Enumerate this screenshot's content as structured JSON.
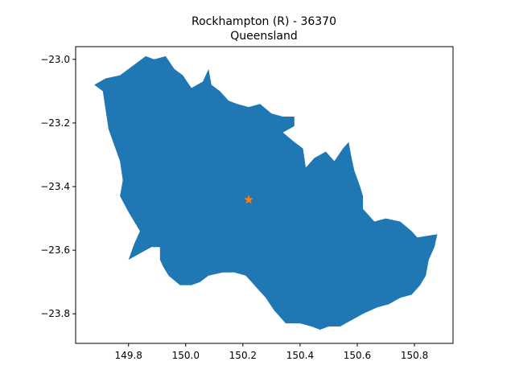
{
  "title": {
    "line1": "Rockhampton (R) - 36370",
    "line2": "Queensland"
  },
  "colors": {
    "region_fill": "#1f77b4",
    "marker": "#ff7f0e",
    "axes": "#000000",
    "background": "#ffffff"
  },
  "chart_data": {
    "type": "map",
    "region": "Rockhampton (R)",
    "state": "Queensland",
    "code": "36370",
    "xlim": [
      149.615,
      150.935
    ],
    "ylim": [
      -23.893,
      -22.96
    ],
    "x_ticks": [
      149.8,
      150.0,
      150.2,
      150.4,
      150.6,
      150.8
    ],
    "x_tick_labels": [
      "149.8",
      "150.0",
      "150.2",
      "150.4",
      "150.6",
      "150.8"
    ],
    "y_ticks": [
      -23.0,
      -23.2,
      -23.4,
      -23.6,
      -23.8
    ],
    "y_tick_labels": [
      "−23.0",
      "−23.2",
      "−23.4",
      "−23.6",
      "−23.8"
    ],
    "marker": {
      "symbol": "star",
      "lon": 150.22,
      "lat": -23.44
    },
    "boundary": [
      [
        149.68,
        -23.08
      ],
      [
        149.72,
        -23.06
      ],
      [
        149.77,
        -23.05
      ],
      [
        149.8,
        -23.03
      ],
      [
        149.83,
        -23.01
      ],
      [
        149.86,
        -22.99
      ],
      [
        149.89,
        -23.0
      ],
      [
        149.93,
        -22.99
      ],
      [
        149.96,
        -23.03
      ],
      [
        149.99,
        -23.05
      ],
      [
        150.02,
        -23.09
      ],
      [
        150.06,
        -23.07
      ],
      [
        150.08,
        -23.03
      ],
      [
        150.09,
        -23.08
      ],
      [
        150.12,
        -23.1
      ],
      [
        150.15,
        -23.13
      ],
      [
        150.18,
        -23.14
      ],
      [
        150.22,
        -23.15
      ],
      [
        150.26,
        -23.14
      ],
      [
        150.3,
        -23.17
      ],
      [
        150.34,
        -23.18
      ],
      [
        150.38,
        -23.18
      ],
      [
        150.38,
        -23.21
      ],
      [
        150.34,
        -23.23
      ],
      [
        150.38,
        -23.26
      ],
      [
        150.41,
        -23.28
      ],
      [
        150.42,
        -23.34
      ],
      [
        150.45,
        -23.31
      ],
      [
        150.49,
        -23.29
      ],
      [
        150.52,
        -23.32
      ],
      [
        150.55,
        -23.28
      ],
      [
        150.57,
        -23.26
      ],
      [
        150.58,
        -23.31
      ],
      [
        150.59,
        -23.35
      ],
      [
        150.61,
        -23.4
      ],
      [
        150.62,
        -23.43
      ],
      [
        150.62,
        -23.47
      ],
      [
        150.64,
        -23.49
      ],
      [
        150.66,
        -23.51
      ],
      [
        150.7,
        -23.5
      ],
      [
        150.75,
        -23.51
      ],
      [
        150.79,
        -23.54
      ],
      [
        150.81,
        -23.56
      ],
      [
        150.88,
        -23.55
      ],
      [
        150.87,
        -23.59
      ],
      [
        150.85,
        -23.63
      ],
      [
        150.84,
        -23.68
      ],
      [
        150.82,
        -23.71
      ],
      [
        150.79,
        -23.74
      ],
      [
        150.75,
        -23.75
      ],
      [
        150.71,
        -23.77
      ],
      [
        150.67,
        -23.78
      ],
      [
        150.62,
        -23.8
      ],
      [
        150.58,
        -23.82
      ],
      [
        150.54,
        -23.84
      ],
      [
        150.5,
        -23.84
      ],
      [
        150.47,
        -23.85
      ],
      [
        150.44,
        -23.84
      ],
      [
        150.4,
        -23.83
      ],
      [
        150.35,
        -23.83
      ],
      [
        150.31,
        -23.79
      ],
      [
        150.28,
        -23.75
      ],
      [
        150.24,
        -23.71
      ],
      [
        150.21,
        -23.68
      ],
      [
        150.17,
        -23.67
      ],
      [
        150.13,
        -23.67
      ],
      [
        150.08,
        -23.68
      ],
      [
        150.05,
        -23.7
      ],
      [
        150.02,
        -23.71
      ],
      [
        149.98,
        -23.71
      ],
      [
        149.94,
        -23.68
      ],
      [
        149.92,
        -23.65
      ],
      [
        149.91,
        -23.63
      ],
      [
        149.91,
        -23.59
      ],
      [
        149.88,
        -23.59
      ],
      [
        149.84,
        -23.61
      ],
      [
        149.8,
        -23.63
      ],
      [
        149.82,
        -23.58
      ],
      [
        149.84,
        -23.54
      ],
      [
        149.8,
        -23.48
      ],
      [
        149.77,
        -23.43
      ],
      [
        149.78,
        -23.38
      ],
      [
        149.77,
        -23.32
      ],
      [
        149.75,
        -23.27
      ],
      [
        149.73,
        -23.22
      ],
      [
        149.72,
        -23.16
      ],
      [
        149.71,
        -23.1
      ],
      [
        149.68,
        -23.08
      ]
    ]
  }
}
